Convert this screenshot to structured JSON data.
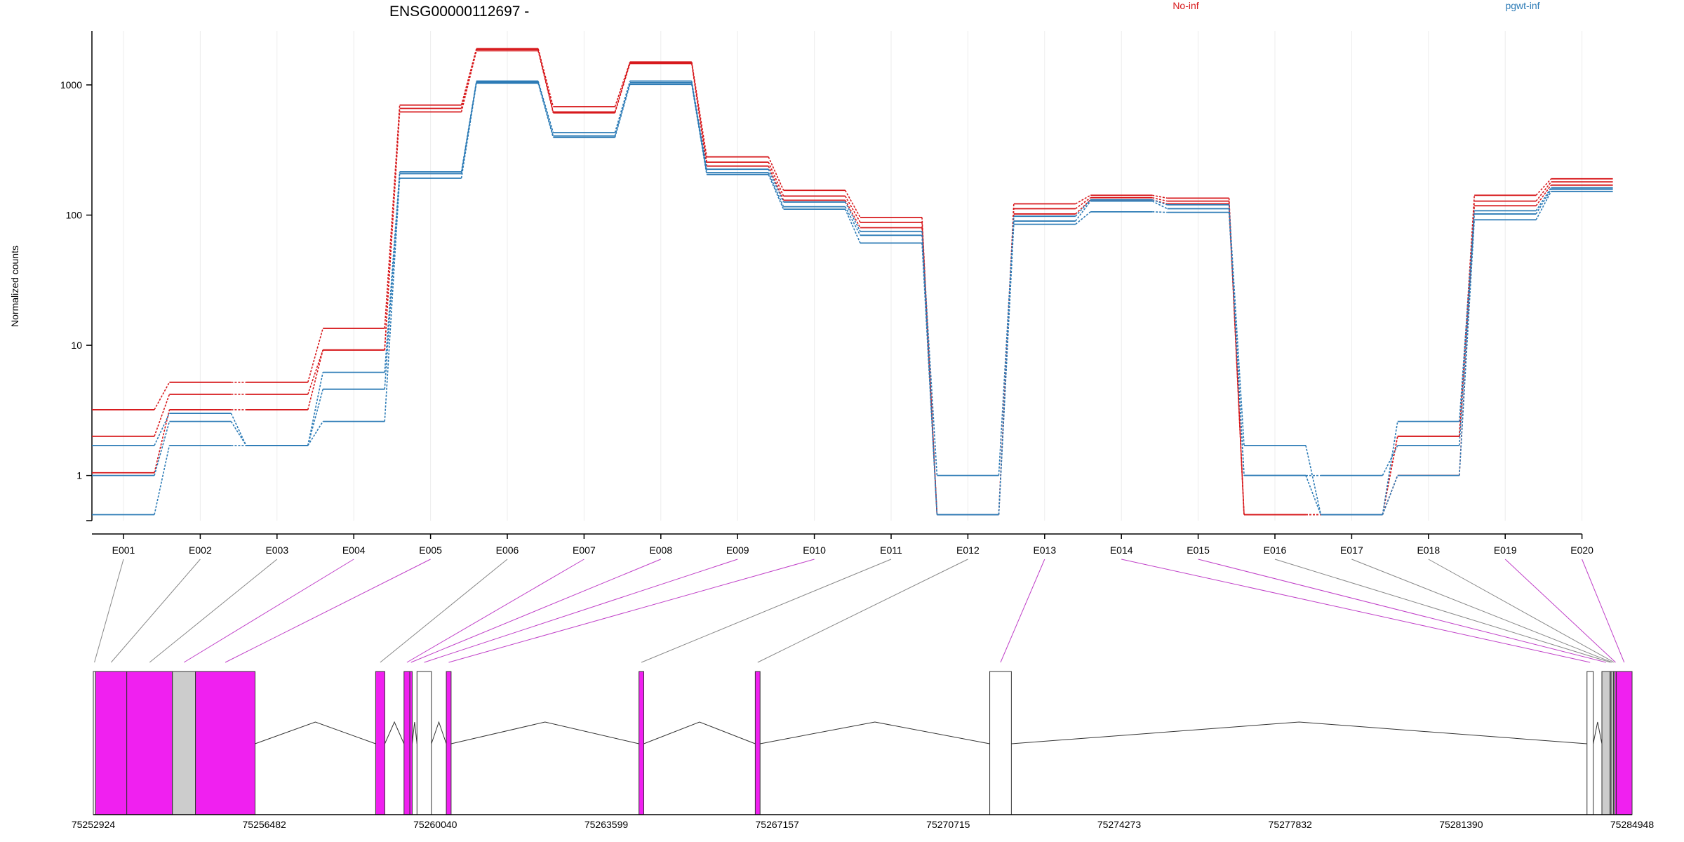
{
  "chart_data": {
    "type": "line",
    "title": "ENSG00000112697 -",
    "ylabel": "Normalized counts",
    "yscale": "log",
    "ylim": [
      0.45,
      2600
    ],
    "yticks": [
      1,
      10,
      100,
      1000
    ],
    "ytick_labels": [
      "1",
      "10",
      "100",
      "1000"
    ],
    "grid_x": true,
    "legend_placement": "top",
    "categories": [
      "E001",
      "E002",
      "E003",
      "E004",
      "E005",
      "E006",
      "E007",
      "E008",
      "E009",
      "E010",
      "E011",
      "E012",
      "E013",
      "E014",
      "E015",
      "E016",
      "E017",
      "E018",
      "E019",
      "E020"
    ],
    "groups": [
      {
        "name": "No-inf",
        "color": "#d7191c"
      },
      {
        "name": "pgwt-inf",
        "color": "#2c7bb6"
      }
    ],
    "series": [
      {
        "group": "No-inf",
        "values": [
          3.2,
          5.2,
          5.2,
          13.5,
          700,
          1900,
          680,
          1500,
          280,
          155,
          96,
          0.5,
          122,
          142,
          135,
          0.5,
          0.5,
          2.0,
          142,
          190
        ]
      },
      {
        "group": "No-inf",
        "values": [
          2.0,
          4.2,
          4.2,
          9.2,
          660,
          1880,
          620,
          1480,
          255,
          140,
          88,
          0.5,
          112,
          136,
          128,
          0.5,
          0.5,
          2.0,
          128,
          180
        ]
      },
      {
        "group": "No-inf",
        "values": [
          1.05,
          3.2,
          3.2,
          9.2,
          620,
          1830,
          610,
          1460,
          238,
          130,
          80,
          0.5,
          102,
          131,
          122,
          0.5,
          0.5,
          1.0,
          118,
          170
        ]
      },
      {
        "group": "pgwt-inf",
        "values": [
          1.7,
          3.0,
          1.7,
          6.2,
          215,
          1070,
          430,
          1070,
          225,
          126,
          75,
          1.0,
          98,
          131,
          120,
          1.7,
          0.5,
          2.6,
          108,
          162
        ]
      },
      {
        "group": "pgwt-inf",
        "values": [
          1.0,
          2.6,
          1.7,
          4.6,
          208,
          1050,
          405,
          1040,
          212,
          116,
          70,
          0.5,
          90,
          128,
          112,
          1.0,
          1.0,
          1.7,
          102,
          158
        ]
      },
      {
        "group": "pgwt-inf",
        "values": [
          0.5,
          1.7,
          1.7,
          2.6,
          192,
          1030,
          395,
          1010,
          205,
          111,
          61,
          0.5,
          85,
          106,
          105,
          1.0,
          0.5,
          1.0,
          92,
          152
        ]
      }
    ],
    "gene_model": {
      "start": 75252924,
      "end": 75284948,
      "coordinate_labels": [
        "75252924",
        "75256482",
        "75260040",
        "75263599",
        "75267157",
        "75270715",
        "75274273",
        "75277832",
        "75281390",
        "75284948"
      ],
      "coordinate_values": [
        75252924,
        75256482,
        75260040,
        75263599,
        75267157,
        75270715,
        75274273,
        75277832,
        75281390,
        75284948
      ],
      "colors": {
        "significant": "#f020f0",
        "neutral": "#ffffff",
        "other": "#cccccc"
      },
      "features": [
        {
          "exon": "E001",
          "start": 75252924,
          "end": 75252970,
          "kind": "neutral"
        },
        {
          "exon": "E002",
          "start": 75252970,
          "end": 75253620,
          "kind": "significant"
        },
        {
          "exon": "E003",
          "start": 75253620,
          "end": 75254570,
          "kind": "significant"
        },
        {
          "exon": "E004",
          "start": 75254570,
          "end": 75255050,
          "kind": "other"
        },
        {
          "exon": "E005",
          "start": 75255050,
          "end": 75256290,
          "kind": "significant"
        },
        {
          "exon": "E006",
          "start": 75258800,
          "end": 75258990,
          "kind": "significant"
        },
        {
          "exon": "E007",
          "start": 75259390,
          "end": 75259510,
          "kind": "significant"
        },
        {
          "exon": "E008",
          "start": 75259510,
          "end": 75259560,
          "kind": "significant"
        },
        {
          "exon": "E009",
          "start": 75259660,
          "end": 75259960,
          "kind": "neutral"
        },
        {
          "exon": "E010",
          "start": 75260270,
          "end": 75260370,
          "kind": "significant"
        },
        {
          "exon": "E011",
          "start": 75264280,
          "end": 75264380,
          "kind": "significant"
        },
        {
          "exon": "E012",
          "start": 75266700,
          "end": 75266800,
          "kind": "significant"
        },
        {
          "exon": "E013",
          "start": 75271580,
          "end": 75272030,
          "kind": "neutral"
        },
        {
          "exon": "E014",
          "start": 75284010,
          "end": 75284140,
          "kind": "neutral"
        },
        {
          "exon": "E015",
          "start": 75284320,
          "end": 75284490,
          "kind": "other"
        },
        {
          "exon": "E016",
          "start": 75284490,
          "end": 75284510,
          "kind": "other"
        },
        {
          "exon": "E017",
          "start": 75284510,
          "end": 75284560,
          "kind": "other"
        },
        {
          "exon": "E018",
          "start": 75284560,
          "end": 75284590,
          "kind": "other"
        },
        {
          "exon": "E019",
          "start": 75284590,
          "end": 75284620,
          "kind": "significant"
        },
        {
          "exon": "E020",
          "start": 75284620,
          "end": 75284948,
          "kind": "significant"
        }
      ],
      "connectors": [
        {
          "exon": "E001",
          "significant": false
        },
        {
          "exon": "E002",
          "significant": false
        },
        {
          "exon": "E003",
          "significant": false
        },
        {
          "exon": "E004",
          "significant": true
        },
        {
          "exon": "E005",
          "significant": true
        },
        {
          "exon": "E006",
          "significant": false
        },
        {
          "exon": "E007",
          "significant": true
        },
        {
          "exon": "E008",
          "significant": true
        },
        {
          "exon": "E009",
          "significant": true
        },
        {
          "exon": "E010",
          "significant": true
        },
        {
          "exon": "E011",
          "significant": false
        },
        {
          "exon": "E012",
          "significant": false
        },
        {
          "exon": "E013",
          "significant": true
        },
        {
          "exon": "E014",
          "significant": true
        },
        {
          "exon": "E015",
          "significant": true
        },
        {
          "exon": "E016",
          "significant": false
        },
        {
          "exon": "E017",
          "significant": false
        },
        {
          "exon": "E018",
          "significant": false
        },
        {
          "exon": "E019",
          "significant": true
        },
        {
          "exon": "E020",
          "significant": true
        }
      ],
      "introns": [
        [
          75256290,
          75258800
        ],
        [
          75258990,
          75259390
        ],
        [
          75259560,
          75259660
        ],
        [
          75259960,
          75260270
        ],
        [
          75260370,
          75264280
        ],
        [
          75264380,
          75266700
        ],
        [
          75266800,
          75271580
        ],
        [
          75272030,
          75284010
        ],
        [
          75284140,
          75284320
        ]
      ]
    }
  }
}
